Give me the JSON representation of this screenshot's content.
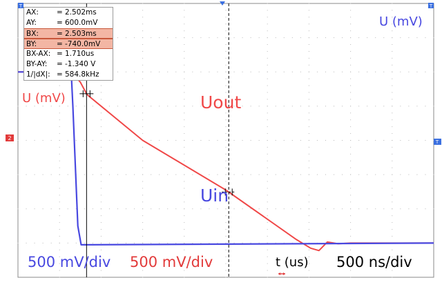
{
  "cursor_readout": [
    {
      "label": "AX:",
      "value": "2.502ms",
      "highlighted": false
    },
    {
      "label": "AY:",
      "value": "600.0mV",
      "highlighted": false
    },
    {
      "label": "BX:",
      "value": "2.503ms",
      "highlighted": true
    },
    {
      "label": "BY:",
      "value": "-740.0mV",
      "highlighted": true
    },
    {
      "label": "BX-AX:",
      "value": "1.710us",
      "highlighted": false
    },
    {
      "label": "BY-AY:",
      "value": "-1.340 V",
      "highlighted": false
    },
    {
      "label": "1/|dX|:",
      "value": "584.8kHz",
      "highlighted": false
    }
  ],
  "equals_sign": "=",
  "channel_marker_label": "2",
  "chart_data": {
    "type": "line",
    "xlabel": "t (us)",
    "time_per_div": "500 ns/div",
    "x_unit": "ns",
    "xlim": [
      0,
      5000
    ],
    "ylim": [
      -4,
      4
    ],
    "y_unit": "div",
    "grid": true,
    "grid_divisions": {
      "x": 10,
      "y": 8
    },
    "series": [
      {
        "name": "Uout",
        "axis_label": "U (mV)",
        "scale_label": "500 mV/div",
        "color": "#f04848",
        "x": [
          0,
          640,
          750,
          830,
          1500,
          2500,
          3350,
          3520,
          3620,
          3720,
          3850,
          4000,
          5000
        ],
        "y": [
          2.0,
          2.0,
          1.7,
          1.34,
          0.0,
          -1.45,
          -2.9,
          -3.15,
          -3.22,
          -2.97,
          -3.02,
          -3.0,
          -3.0
        ]
      },
      {
        "name": "Uin",
        "axis_label": "U (mV)",
        "scale_label": "500 mV/div",
        "color": "#4848e0",
        "x": [
          0,
          640,
          660,
          720,
          760,
          800,
          5000
        ],
        "y": [
          2.0,
          2.0,
          1.0,
          -2.5,
          -3.05,
          -3.05,
          -3.0
        ]
      }
    ],
    "cursor_a": {
      "t": 825
    },
    "cursor_b": {
      "t": 2535
    }
  }
}
